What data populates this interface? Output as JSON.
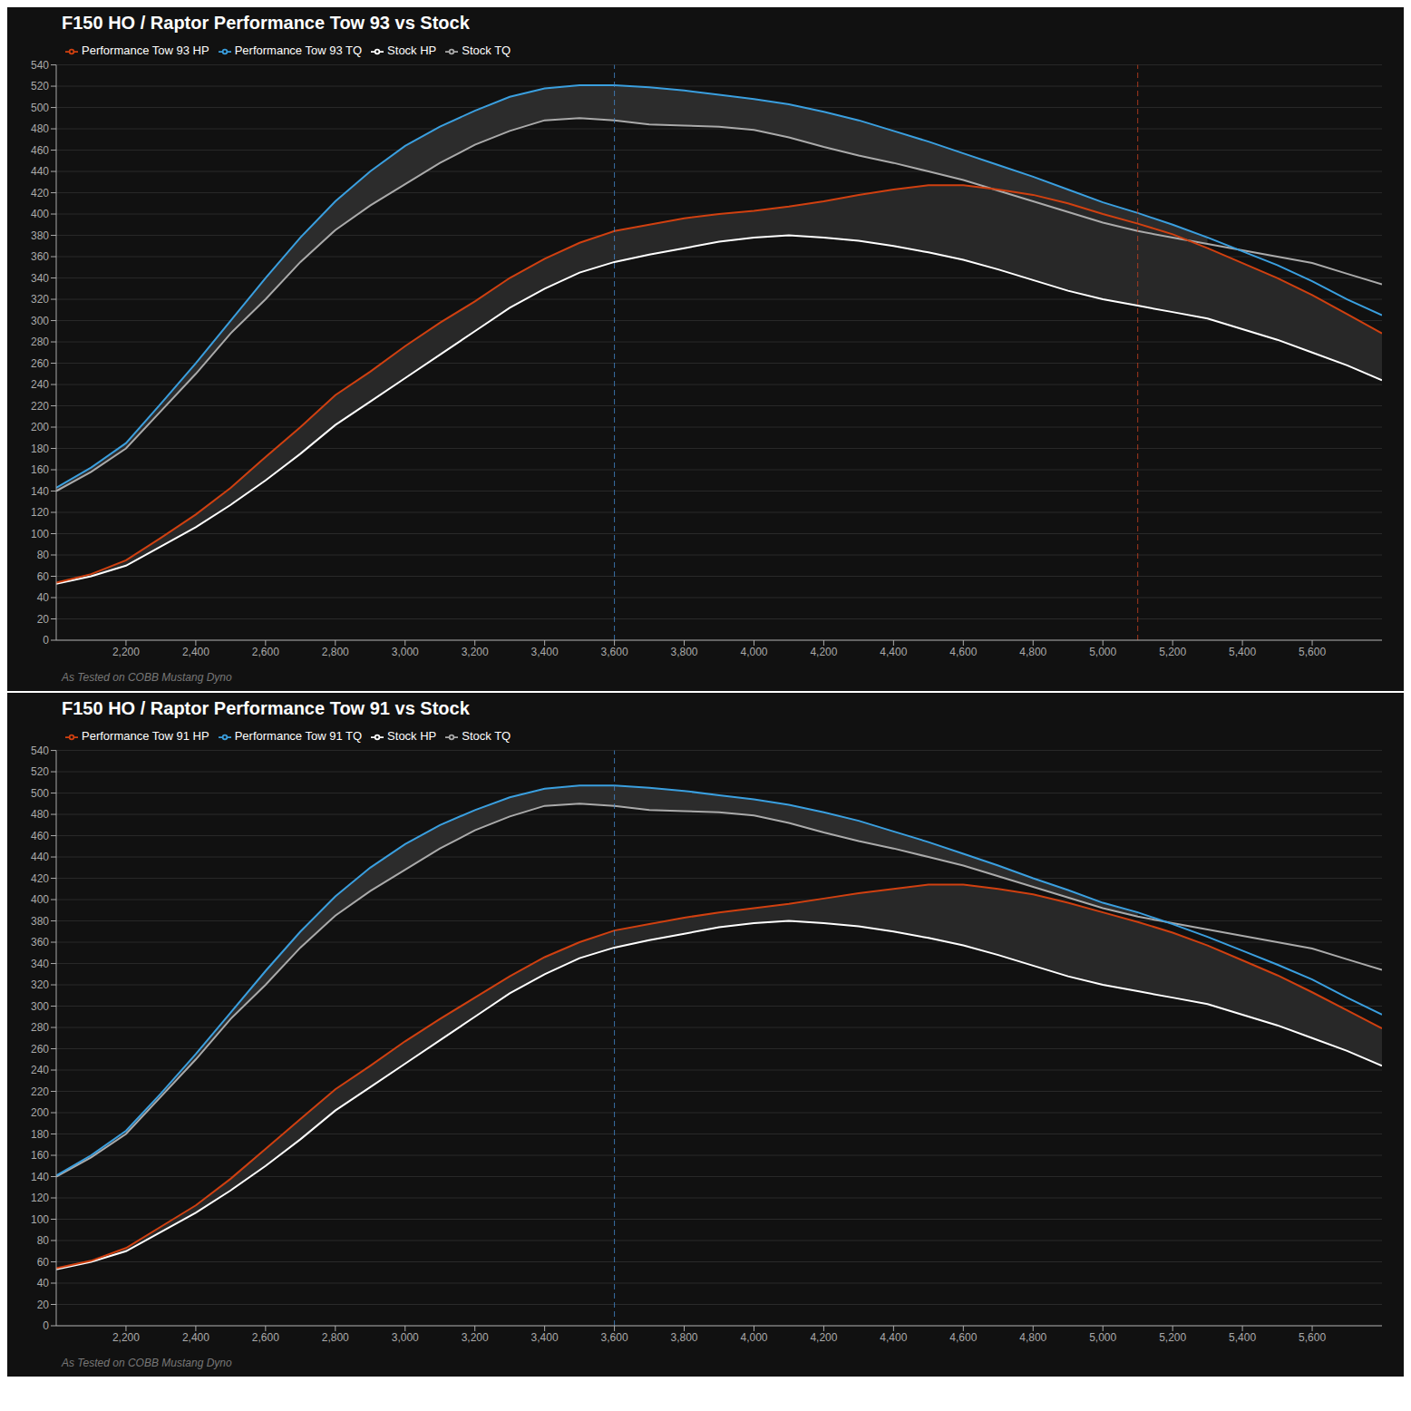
{
  "chart_data": [
    {
      "type": "line",
      "title": "F150 HO / Raptor Performance Tow 93 vs Stock",
      "subtitle": "As Tested on COBB Mustang Dyno",
      "x": [
        2000,
        2100,
        2200,
        2300,
        2400,
        2500,
        2600,
        2700,
        2800,
        2900,
        3000,
        3100,
        3200,
        3300,
        3400,
        3500,
        3600,
        3700,
        3800,
        3900,
        4000,
        4100,
        4200,
        4300,
        4400,
        4500,
        4600,
        4700,
        4800,
        4900,
        5000,
        5100,
        5200,
        5300,
        5400,
        5500,
        5600,
        5700,
        5800
      ],
      "series": [
        {
          "name": "Stock TQ",
          "color": "#aaaaaa",
          "values": [
            140,
            158,
            180,
            215,
            250,
            288,
            320,
            355,
            385,
            408,
            428,
            448,
            465,
            478,
            488,
            490,
            488,
            484,
            483,
            482,
            479,
            472,
            463,
            455,
            448,
            440,
            432,
            422,
            412,
            402,
            392,
            384,
            378,
            372,
            366,
            360,
            354,
            344,
            334
          ]
        },
        {
          "name": "Performance Tow 93 TQ",
          "color": "#3a9fdf",
          "values": [
            143,
            162,
            185,
            222,
            260,
            300,
            340,
            378,
            412,
            440,
            464,
            482,
            497,
            510,
            518,
            521,
            521,
            519,
            516,
            512,
            508,
            503,
            496,
            488,
            478,
            468,
            457,
            446,
            435,
            423,
            411,
            401,
            390,
            378,
            365,
            352,
            337,
            320,
            305
          ]
        },
        {
          "name": "Stock HP",
          "color": "#ffffff",
          "values": [
            53,
            60,
            70,
            88,
            106,
            127,
            150,
            175,
            202,
            224,
            246,
            268,
            290,
            312,
            330,
            345,
            355,
            362,
            368,
            374,
            378,
            380,
            378,
            375,
            370,
            364,
            357,
            348,
            338,
            328,
            320,
            314,
            308,
            302,
            292,
            282,
            270,
            258,
            244
          ]
        },
        {
          "name": "Performance Tow 93 HP",
          "color": "#d04010",
          "values": [
            54,
            62,
            75,
            96,
            118,
            143,
            172,
            200,
            230,
            252,
            276,
            298,
            318,
            340,
            358,
            373,
            384,
            390,
            396,
            400,
            403,
            407,
            412,
            418,
            423,
            427,
            427,
            423,
            418,
            410,
            400,
            391,
            381,
            368,
            354,
            340,
            324,
            306,
            288
          ]
        }
      ],
      "vlines": [
        {
          "x": 3600,
          "color": "#4488cc",
          "line_style": "dashed"
        },
        {
          "x": 5100,
          "color": "#cc4422",
          "line_style": "dashed"
        }
      ],
      "xlim": [
        2000,
        5800
      ],
      "xticks": [
        {
          "value": 2200,
          "label": "2,200"
        },
        {
          "value": 2400,
          "label": "2,400"
        },
        {
          "value": 2600,
          "label": "2,600"
        },
        {
          "value": 2800,
          "label": "2,800"
        },
        {
          "value": 3000,
          "label": "3,000"
        },
        {
          "value": 3200,
          "label": "3,200"
        },
        {
          "value": 3400,
          "label": "3,400"
        },
        {
          "value": 3600,
          "label": "3,600"
        },
        {
          "value": 3800,
          "label": "3,800"
        },
        {
          "value": 4000,
          "label": "4,000"
        },
        {
          "value": 4200,
          "label": "4,200"
        },
        {
          "value": 4400,
          "label": "4,400"
        },
        {
          "value": 4600,
          "label": "4,600"
        },
        {
          "value": 4800,
          "label": "4,800"
        },
        {
          "value": 5000,
          "label": "5,000"
        },
        {
          "value": 5200,
          "label": "5,200"
        },
        {
          "value": 5400,
          "label": "5,400"
        },
        {
          "value": 5600,
          "label": "5,600"
        }
      ],
      "ylim": [
        0,
        540
      ],
      "yticks": [
        0,
        20,
        40,
        60,
        80,
        100,
        120,
        140,
        160,
        180,
        200,
        220,
        240,
        260,
        280,
        300,
        320,
        340,
        360,
        380,
        400,
        420,
        440,
        460,
        480,
        500,
        520,
        540
      ],
      "grid": "y",
      "legend": "upper left"
    },
    {
      "type": "line",
      "title": "F150 HO / Raptor Performance Tow 91 vs Stock",
      "subtitle": "As Tested on COBB Mustang Dyno",
      "x": [
        2000,
        2100,
        2200,
        2300,
        2400,
        2500,
        2600,
        2700,
        2800,
        2900,
        3000,
        3100,
        3200,
        3300,
        3400,
        3500,
        3600,
        3700,
        3800,
        3900,
        4000,
        4100,
        4200,
        4300,
        4400,
        4500,
        4600,
        4700,
        4800,
        4900,
        5000,
        5100,
        5200,
        5300,
        5400,
        5500,
        5600,
        5700,
        5800
      ],
      "series": [
        {
          "name": "Stock TQ",
          "color": "#aaaaaa",
          "values": [
            140,
            158,
            180,
            215,
            250,
            288,
            320,
            355,
            385,
            408,
            428,
            448,
            465,
            478,
            488,
            490,
            488,
            484,
            483,
            482,
            479,
            472,
            463,
            455,
            448,
            440,
            432,
            422,
            412,
            402,
            392,
            384,
            378,
            372,
            366,
            360,
            354,
            344,
            334
          ]
        },
        {
          "name": "Performance Tow 91 TQ",
          "color": "#3a9fdf",
          "values": [
            141,
            160,
            183,
            218,
            255,
            294,
            333,
            370,
            403,
            430,
            452,
            470,
            484,
            496,
            504,
            507,
            507,
            505,
            502,
            498,
            494,
            489,
            482,
            474,
            464,
            454,
            443,
            432,
            420,
            409,
            397,
            388,
            377,
            365,
            352,
            339,
            325,
            308,
            292
          ]
        },
        {
          "name": "Stock HP",
          "color": "#ffffff",
          "values": [
            53,
            60,
            70,
            88,
            106,
            127,
            150,
            175,
            202,
            224,
            246,
            268,
            290,
            312,
            330,
            345,
            355,
            362,
            368,
            374,
            378,
            380,
            378,
            375,
            370,
            364,
            357,
            348,
            338,
            328,
            320,
            314,
            308,
            302,
            292,
            282,
            270,
            258,
            244
          ]
        },
        {
          "name": "Performance Tow 91 HP",
          "color": "#d04010",
          "values": [
            54,
            61,
            73,
            93,
            113,
            138,
            166,
            194,
            222,
            244,
            267,
            288,
            308,
            328,
            346,
            360,
            371,
            377,
            383,
            388,
            392,
            396,
            401,
            406,
            410,
            414,
            414,
            410,
            405,
            397,
            388,
            379,
            369,
            357,
            343,
            329,
            313,
            296,
            279
          ]
        }
      ],
      "vlines": [
        {
          "x": 3600,
          "color": "#4488cc",
          "line_style": "dashed"
        }
      ],
      "xlim": [
        2000,
        5800
      ],
      "xticks": [
        {
          "value": 2200,
          "label": "2,200"
        },
        {
          "value": 2400,
          "label": "2,400"
        },
        {
          "value": 2600,
          "label": "2,600"
        },
        {
          "value": 2800,
          "label": "2,800"
        },
        {
          "value": 3000,
          "label": "3,000"
        },
        {
          "value": 3200,
          "label": "3,200"
        },
        {
          "value": 3400,
          "label": "3,400"
        },
        {
          "value": 3600,
          "label": "3,600"
        },
        {
          "value": 3800,
          "label": "3,800"
        },
        {
          "value": 4000,
          "label": "4,000"
        },
        {
          "value": 4200,
          "label": "4,200"
        },
        {
          "value": 4400,
          "label": "4,400"
        },
        {
          "value": 4600,
          "label": "4,600"
        },
        {
          "value": 4800,
          "label": "4,800"
        },
        {
          "value": 5000,
          "label": "5,000"
        },
        {
          "value": 5200,
          "label": "5,200"
        },
        {
          "value": 5400,
          "label": "5,400"
        },
        {
          "value": 5600,
          "label": "5,600"
        }
      ],
      "ylim": [
        0,
        540
      ],
      "yticks": [
        0,
        20,
        40,
        60,
        80,
        100,
        120,
        140,
        160,
        180,
        200,
        220,
        240,
        260,
        280,
        300,
        320,
        340,
        360,
        380,
        400,
        420,
        440,
        460,
        480,
        500,
        520,
        540
      ],
      "grid": "y",
      "legend": "upper left"
    }
  ]
}
